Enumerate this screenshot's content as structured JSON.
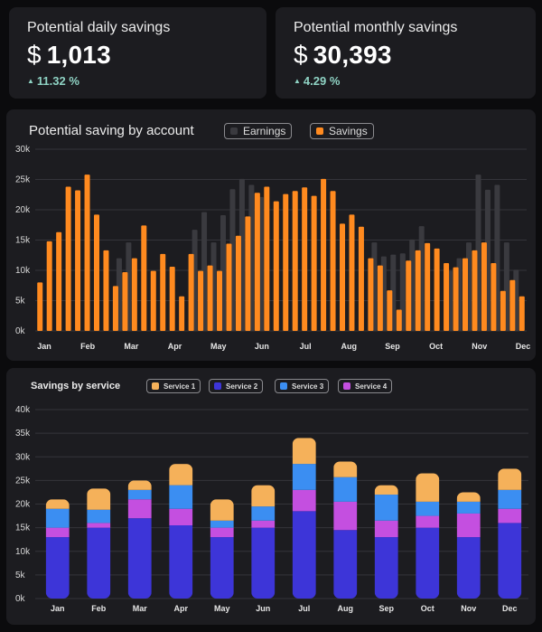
{
  "kpis": {
    "daily": {
      "label": "Potential daily savings",
      "currency": "$",
      "value": "1,013",
      "change": "11.32 %"
    },
    "monthly": {
      "label": "Potential monthly savings",
      "currency": "$",
      "value": "30,393",
      "change": "4.29 %"
    }
  },
  "colors": {
    "savings": "#ff8a1f",
    "earnings": "#3a3a3f",
    "service1": "#f5b15a",
    "service2": "#3d35d8",
    "service3": "#3b8ef2",
    "service4": "#c44fe0",
    "positive": "#8fd3c4"
  },
  "chart_data": [
    {
      "type": "bar",
      "title": "Potential saving by account",
      "legend": [
        "Earnings",
        "Savings"
      ],
      "month_labels": [
        "Jan",
        "Feb",
        "Mar",
        "Apr",
        "May",
        "Jun",
        "Jul",
        "Aug",
        "Sep",
        "Oct",
        "Nov",
        "Dec"
      ],
      "yticks": [
        "0k",
        "5k",
        "10k",
        "15k",
        "20k",
        "25k",
        "30k"
      ],
      "ylim": [
        0,
        30000
      ],
      "series": [
        {
          "name": "Savings",
          "values": [
            8000,
            14800,
            16300,
            23800,
            23200,
            25800,
            19200,
            13300,
            7400,
            9700,
            12000,
            17400,
            9900,
            12700,
            10600,
            5700,
            12700,
            9900,
            10800,
            9900,
            14400,
            15700,
            18900,
            22800,
            23800,
            21400,
            22600,
            23100,
            23700,
            22300,
            25100,
            23100,
            17700,
            19200,
            17200,
            12000,
            10800,
            6700,
            3500,
            11600,
            13300,
            14500,
            13600,
            11200,
            10500,
            12000,
            13300,
            14600,
            11200,
            6600,
            8400,
            5700
          ]
        },
        {
          "name": "Earnings",
          "values": [
            0,
            0,
            0,
            0,
            0,
            0,
            0,
            0,
            12000,
            14600,
            0,
            0,
            0,
            0,
            0,
            0,
            16700,
            19600,
            14600,
            19100,
            23400,
            25100,
            24100,
            22100,
            0,
            0,
            0,
            0,
            0,
            0,
            0,
            0,
            0,
            0,
            0,
            14600,
            12300,
            12600,
            12800,
            15100,
            17300,
            0,
            0,
            9900,
            12000,
            14600,
            25800,
            23300,
            24100,
            14600,
            10100,
            0
          ]
        }
      ]
    },
    {
      "type": "bar",
      "stacked": true,
      "title": "Savings by service",
      "categories": [
        "Jan",
        "Feb",
        "Mar",
        "Apr",
        "May",
        "Jun",
        "Jul",
        "Aug",
        "Sep",
        "Oct",
        "Nov",
        "Dec"
      ],
      "yticks": [
        "0k",
        "5k",
        "10k",
        "15k",
        "20k",
        "25k",
        "30k",
        "35k",
        "40k"
      ],
      "ylim": [
        0,
        40000
      ],
      "series": [
        {
          "name": "Service 2",
          "values": [
            13000,
            15000,
            17000,
            15500,
            13000,
            15000,
            18500,
            14500,
            13000,
            15000,
            13000,
            16000
          ]
        },
        {
          "name": "Service 4",
          "values": [
            2000,
            1000,
            4000,
            3500,
            2000,
            1500,
            4500,
            6000,
            3500,
            2500,
            5000,
            3000
          ]
        },
        {
          "name": "Service 3",
          "values": [
            4000,
            2800,
            2000,
            5000,
            1500,
            3000,
            5500,
            5200,
            5500,
            3000,
            2500,
            4000
          ]
        },
        {
          "name": "Service 1",
          "values": [
            2000,
            4500,
            2000,
            4500,
            4500,
            4500,
            5500,
            3300,
            2000,
            6000,
            2000,
            4500
          ]
        }
      ],
      "legend": [
        "Service 1",
        "Service 2",
        "Service 3",
        "Service 4"
      ]
    }
  ]
}
